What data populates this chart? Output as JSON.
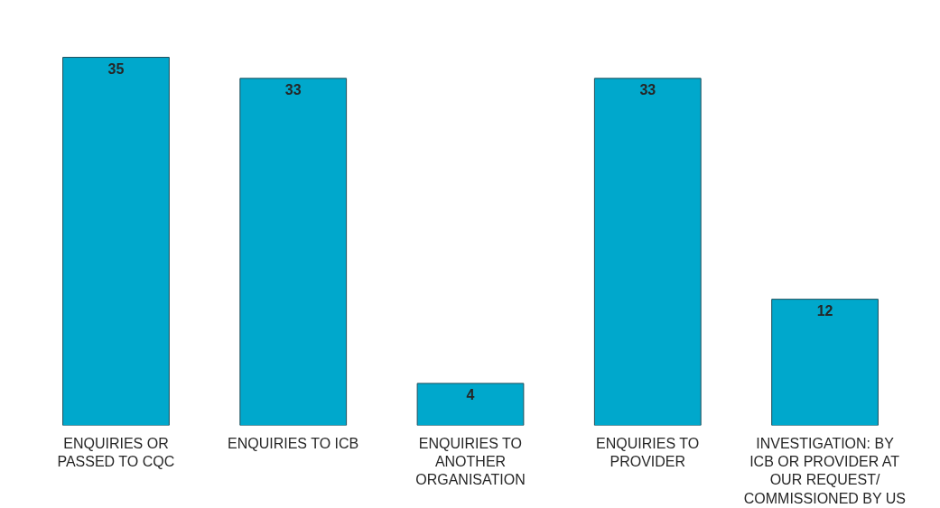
{
  "chart_data": {
    "type": "bar",
    "categories": [
      "ENQUIRIES OR PASSED TO CQC",
      "ENQUIRIES TO ICB",
      "ENQUIRIES TO ANOTHER ORGANISATION",
      "ENQUIRIES TO PROVIDER",
      "INVESTIGATION: BY ICB OR PROVIDER AT OUR REQUEST/ COMMISSIONED BY US"
    ],
    "values": [
      35,
      33,
      4,
      33,
      12
    ],
    "color": "#00a8cc",
    "data_labels": true,
    "grid": false
  }
}
